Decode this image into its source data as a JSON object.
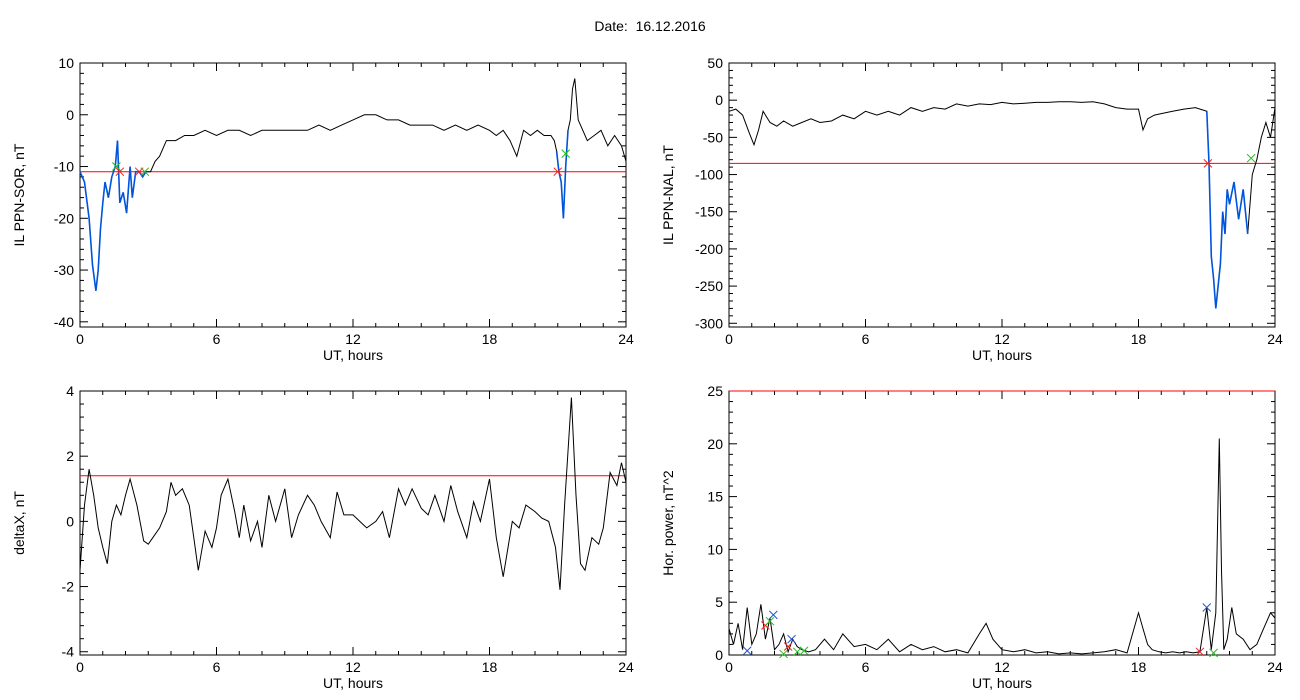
{
  "figure": {
    "title": "Date:  16.12.2016"
  },
  "colors": {
    "trace": "#000000",
    "threshold": "#ff0000",
    "highlight": "#0055dd",
    "marker_green": "#22bb22",
    "marker_red": "#ee2222",
    "marker_blue": "#2255cc"
  },
  "chart_data": [
    {
      "type": "line",
      "title": "",
      "xlabel": "UT, hours",
      "ylabel": "IL PPN-SOR, nT",
      "xlim": [
        0,
        24
      ],
      "ylim": [
        -41,
        10
      ],
      "x_ticks": [
        0,
        6,
        12,
        18,
        24
      ],
      "y_ticks": [
        10,
        0,
        -10,
        -20,
        -30,
        -40
      ],
      "threshold": -11,
      "series": [
        {
          "x": [
            0,
            0.2,
            0.4,
            0.55,
            0.7,
            0.8,
            0.9,
            1.0,
            1.1,
            1.25,
            1.4,
            1.55,
            1.65,
            1.75,
            1.9,
            2.05,
            2.2,
            2.3,
            2.45,
            2.6,
            2.75,
            2.9,
            3.1,
            3.3,
            3.5,
            3.8,
            4.2,
            4.6,
            5.0,
            5.5,
            6.0,
            6.5,
            7.0,
            7.5,
            8.0,
            8.5,
            9.0,
            9.5,
            10.0,
            10.5,
            11.0,
            11.5,
            12.0,
            12.5,
            13.0,
            13.5,
            14.0,
            14.5,
            15.0,
            15.5,
            16.0,
            16.5,
            17.0,
            17.5,
            18.0,
            18.3,
            18.6,
            18.9,
            19.2,
            19.5,
            19.8,
            20.1,
            20.4,
            20.7,
            20.85,
            20.95,
            21.05,
            21.15,
            21.25,
            21.35,
            21.45,
            21.55,
            21.65,
            21.75,
            21.9,
            22.1,
            22.3,
            22.6,
            22.9,
            23.2,
            23.5,
            23.8,
            24.0
          ],
          "y": [
            -11,
            -13,
            -20,
            -29,
            -34,
            -30,
            -22,
            -17,
            -13,
            -16,
            -12,
            -10,
            -5,
            -17,
            -15,
            -19,
            -10,
            -16,
            -11,
            -11,
            -12,
            -11,
            -11,
            -9,
            -8,
            -5,
            -5,
            -4,
            -4,
            -3,
            -4,
            -3,
            -3,
            -4,
            -3,
            -3,
            -3,
            -3,
            -3,
            -2,
            -3,
            -2,
            -1,
            0,
            0,
            -1,
            -1,
            -2,
            -2,
            -2,
            -3,
            -2,
            -3,
            -2,
            -3,
            -4,
            -3,
            -5,
            -8,
            -3,
            -4,
            -3,
            -4,
            -4,
            -5,
            -7,
            -11,
            -13,
            -20,
            -10,
            -3,
            -1,
            5,
            7,
            -1,
            -3,
            -5,
            -4,
            -3,
            -6,
            -4,
            -6,
            -9
          ]
        }
      ],
      "highlight_range": [
        0,
        3.0,
        20.9,
        21.5
      ],
      "markers": [
        {
          "x": 1.6,
          "y": -10,
          "color": "green"
        },
        {
          "x": 1.75,
          "y": -11,
          "color": "red"
        },
        {
          "x": 2.6,
          "y": -11,
          "color": "red"
        },
        {
          "x": 2.85,
          "y": -11,
          "color": "green"
        },
        {
          "x": 21.0,
          "y": -11,
          "color": "red"
        },
        {
          "x": 21.35,
          "y": -7.5,
          "color": "green"
        }
      ]
    },
    {
      "type": "line",
      "title": "",
      "xlabel": "UT, hours",
      "ylabel": "IL PPN-NAL, nT",
      "xlim": [
        0,
        24
      ],
      "ylim": [
        -305,
        50
      ],
      "x_ticks": [
        0,
        6,
        12,
        18,
        24
      ],
      "y_ticks": [
        50,
        0,
        -50,
        -100,
        -150,
        -200,
        -250,
        -300
      ],
      "threshold": -85,
      "series": [
        {
          "x": [
            0,
            0.3,
            0.6,
            0.9,
            1.1,
            1.3,
            1.5,
            1.8,
            2.1,
            2.4,
            2.8,
            3.2,
            3.6,
            4.0,
            4.5,
            5.0,
            5.5,
            6.0,
            6.5,
            7.0,
            7.5,
            8.0,
            8.5,
            9.0,
            9.5,
            10.0,
            10.5,
            11.0,
            11.5,
            12.0,
            12.5,
            13.0,
            13.5,
            14.0,
            14.5,
            15.0,
            15.5,
            16.0,
            16.5,
            17.0,
            17.5,
            18.0,
            18.2,
            18.4,
            18.7,
            19.0,
            19.5,
            20.0,
            20.5,
            21.0,
            21.1,
            21.2,
            21.3,
            21.4,
            21.5,
            21.6,
            21.7,
            21.8,
            21.9,
            22.0,
            22.2,
            22.4,
            22.6,
            22.8,
            23.0,
            23.2,
            23.4,
            23.6,
            23.8,
            24.0
          ],
          "y": [
            -15,
            -12,
            -20,
            -45,
            -60,
            -40,
            -15,
            -30,
            -35,
            -28,
            -35,
            -30,
            -25,
            -30,
            -28,
            -20,
            -25,
            -15,
            -20,
            -15,
            -20,
            -10,
            -15,
            -10,
            -12,
            -5,
            -8,
            -5,
            -6,
            -3,
            -5,
            -4,
            -3,
            -3,
            -2,
            -2,
            -3,
            -2,
            -5,
            -10,
            -12,
            -12,
            -40,
            -25,
            -20,
            -18,
            -15,
            -12,
            -10,
            -15,
            -85,
            -210,
            -240,
            -280,
            -250,
            -220,
            -150,
            -180,
            -120,
            -140,
            -110,
            -160,
            -120,
            -180,
            -100,
            -80,
            -50,
            -30,
            -50,
            -10
          ]
        }
      ],
      "highlight_range": [
        21.0,
        22.9
      ],
      "markers": [
        {
          "x": 21.05,
          "y": -85,
          "color": "red"
        },
        {
          "x": 22.95,
          "y": -78,
          "color": "green"
        }
      ]
    },
    {
      "type": "line",
      "title": "",
      "xlabel": "UT, hours",
      "ylabel": "deltaX, nT",
      "xlim": [
        0,
        24
      ],
      "ylim": [
        -4.1,
        4
      ],
      "x_ticks": [
        0,
        6,
        12,
        18,
        24
      ],
      "y_ticks": [
        4,
        2,
        0,
        -2,
        -4
      ],
      "threshold": 1.4,
      "series": [
        {
          "x": [
            0,
            0.2,
            0.4,
            0.6,
            0.8,
            1.0,
            1.2,
            1.4,
            1.6,
            1.8,
            2.0,
            2.2,
            2.5,
            2.8,
            3.0,
            3.2,
            3.5,
            3.8,
            4.0,
            4.2,
            4.5,
            4.8,
            5.0,
            5.2,
            5.5,
            5.8,
            6.0,
            6.2,
            6.5,
            6.8,
            7.0,
            7.2,
            7.5,
            7.8,
            8.0,
            8.3,
            8.6,
            9.0,
            9.3,
            9.6,
            10.0,
            10.3,
            10.6,
            11.0,
            11.3,
            11.6,
            12.0,
            12.3,
            12.6,
            13.0,
            13.3,
            13.6,
            14.0,
            14.3,
            14.6,
            15.0,
            15.3,
            15.6,
            16.0,
            16.3,
            16.6,
            17.0,
            17.3,
            17.6,
            18.0,
            18.3,
            18.6,
            19.0,
            19.3,
            19.6,
            20.0,
            20.3,
            20.6,
            20.9,
            21.1,
            21.3,
            21.6,
            21.8,
            22.0,
            22.2,
            22.5,
            22.8,
            23.0,
            23.3,
            23.6,
            23.8,
            24.0
          ],
          "y": [
            -1.5,
            0.5,
            1.6,
            0.8,
            -0.2,
            -0.8,
            -1.3,
            0.0,
            0.5,
            0.2,
            0.8,
            1.3,
            0.5,
            -0.6,
            -0.7,
            -0.5,
            -0.2,
            0.3,
            1.2,
            0.8,
            1.0,
            0.5,
            -0.5,
            -1.5,
            -0.3,
            -0.8,
            -0.2,
            0.8,
            1.3,
            0.3,
            -0.5,
            0.5,
            -0.6,
            0.0,
            -0.8,
            0.8,
            0.0,
            1.0,
            -0.5,
            0.2,
            0.8,
            0.5,
            0.0,
            -0.5,
            0.9,
            0.2,
            0.2,
            0.0,
            -0.2,
            0.0,
            0.3,
            -0.5,
            1.0,
            0.5,
            1.0,
            0.4,
            0.2,
            0.8,
            0.0,
            1.1,
            0.3,
            -0.5,
            0.6,
            0.0,
            1.3,
            -0.5,
            -1.7,
            0.0,
            -0.2,
            0.5,
            0.3,
            0.1,
            0.0,
            -0.8,
            -2.1,
            0.5,
            3.8,
            0.8,
            -1.3,
            -1.5,
            -0.5,
            -0.7,
            -0.2,
            1.5,
            1.1,
            1.8,
            1.2
          ]
        }
      ]
    },
    {
      "type": "line",
      "title": "",
      "xlabel": "UT, hours",
      "ylabel": "Hor. power, nT^2",
      "xlim": [
        0,
        24
      ],
      "ylim": [
        0,
        25
      ],
      "x_ticks": [
        0,
        6,
        12,
        18,
        24
      ],
      "y_ticks": [
        25,
        20,
        15,
        10,
        5,
        0
      ],
      "threshold": 25,
      "series": [
        {
          "x": [
            0,
            0.2,
            0.4,
            0.6,
            0.8,
            1.0,
            1.2,
            1.4,
            1.6,
            1.8,
            2.0,
            2.2,
            2.4,
            2.6,
            2.8,
            3.0,
            3.2,
            3.5,
            3.8,
            4.2,
            4.6,
            5.0,
            5.5,
            6.0,
            6.5,
            7.0,
            7.5,
            8.0,
            8.5,
            9.0,
            9.5,
            10.0,
            10.5,
            11.0,
            11.3,
            11.6,
            12.0,
            12.5,
            13.0,
            13.5,
            14.0,
            14.5,
            15.0,
            15.5,
            16.0,
            16.5,
            17.0,
            17.5,
            18.0,
            18.2,
            18.4,
            18.6,
            18.9,
            19.2,
            19.5,
            19.8,
            20.1,
            20.4,
            20.7,
            21.0,
            21.2,
            21.4,
            21.55,
            21.65,
            21.75,
            21.9,
            22.1,
            22.3,
            22.6,
            22.9,
            23.2,
            23.5,
            23.8,
            24.0
          ],
          "y": [
            2.5,
            1.0,
            3.0,
            0.5,
            4.5,
            1.0,
            2.0,
            4.8,
            1.5,
            3.5,
            0.5,
            1.0,
            2.0,
            0.3,
            1.5,
            0.8,
            0.5,
            0.3,
            0.5,
            1.5,
            0.5,
            2.0,
            0.8,
            1.0,
            0.5,
            1.5,
            0.3,
            1.0,
            0.5,
            0.8,
            0.3,
            0.5,
            0.2,
            2.0,
            3.0,
            1.5,
            0.5,
            0.3,
            0.5,
            0.2,
            0.3,
            0.1,
            0.2,
            0.1,
            0.2,
            0.3,
            0.5,
            0.2,
            4.0,
            2.5,
            1.0,
            0.5,
            0.3,
            0.2,
            0.3,
            0.2,
            0.3,
            0.2,
            0.3,
            4.5,
            0.5,
            4.0,
            20.5,
            8.0,
            0.5,
            1.5,
            4.5,
            2.0,
            1.5,
            0.5,
            1.0,
            2.5,
            4.0,
            3.5
          ]
        }
      ],
      "markers": [
        {
          "x": 0.8,
          "y": 0.4,
          "color": "blue"
        },
        {
          "x": 1.6,
          "y": 2.8,
          "color": "red"
        },
        {
          "x": 1.8,
          "y": 3.2,
          "color": "green"
        },
        {
          "x": 1.95,
          "y": 3.8,
          "color": "blue"
        },
        {
          "x": 2.4,
          "y": 0.1,
          "color": "green"
        },
        {
          "x": 2.6,
          "y": 0.8,
          "color": "red"
        },
        {
          "x": 2.75,
          "y": 1.5,
          "color": "blue"
        },
        {
          "x": 3.0,
          "y": 0.3,
          "color": "green"
        },
        {
          "x": 3.3,
          "y": 0.4,
          "color": "green"
        },
        {
          "x": 20.7,
          "y": 0.3,
          "color": "red"
        },
        {
          "x": 21.0,
          "y": 4.5,
          "color": "blue"
        },
        {
          "x": 21.3,
          "y": 0.2,
          "color": "green"
        }
      ]
    }
  ]
}
